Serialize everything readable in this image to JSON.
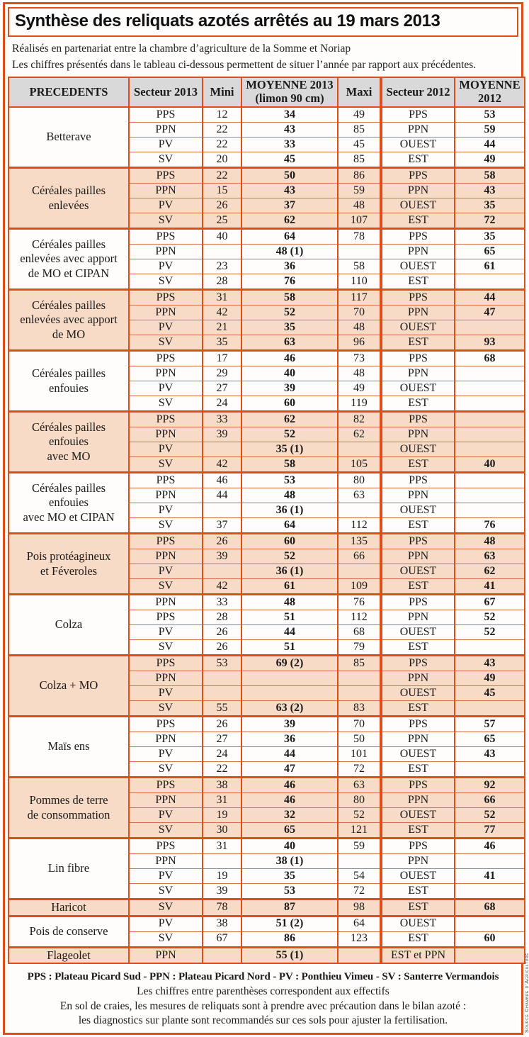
{
  "title": "Synthèse des reliquats azotés arrêtés au 19 mars 2013",
  "subtitle_lines": [
    "Réalisés en partenariat entre la chambre d’agriculture de la Somme et Noriap",
    "Les chiffres présentés dans le tableau ci-dessous permettent de situer l’année par rapport aux précédentes."
  ],
  "colors": {
    "border_orange": "#dd4f17",
    "shaded_row": "#f8dbc6",
    "header_gray": "#d9d9d9"
  },
  "table": {
    "columns": [
      "PRECEDENTS",
      "Secteur 2013",
      "Mini",
      "MOYENNE 2013\n(limon 90 cm)",
      "Maxi",
      "Secteur 2012",
      "MOYENNE\n2012"
    ],
    "groups": [
      {
        "label": "Betterave",
        "shaded": false,
        "rows": [
          [
            "PPS",
            "12",
            "34",
            "49",
            "PPS",
            "53"
          ],
          [
            "PPN",
            "22",
            "43",
            "85",
            "PPN",
            "59"
          ],
          [
            "PV",
            "22",
            "33",
            "45",
            "OUEST",
            "44"
          ],
          [
            "SV",
            "20",
            "45",
            "85",
            "EST",
            "49"
          ]
        ]
      },
      {
        "label": "Céréales pailles\nenlevées",
        "shaded": true,
        "rows": [
          [
            "PPS",
            "22",
            "50",
            "86",
            "PPS",
            "58"
          ],
          [
            "PPN",
            "15",
            "43",
            "59",
            "PPN",
            "43"
          ],
          [
            "PV",
            "26",
            "37",
            "48",
            "OUEST",
            "35"
          ],
          [
            "SV",
            "25",
            "62",
            "107",
            "EST",
            "72"
          ]
        ]
      },
      {
        "label": "Céréales pailles\nenlevées avec apport\nde MO et CIPAN",
        "shaded": false,
        "rows": [
          [
            "PPS",
            "40",
            "64",
            "78",
            "PPS",
            "35"
          ],
          [
            "PPN",
            "",
            "48 (1)",
            "",
            "PPN",
            "65"
          ],
          [
            "PV",
            "23",
            "36",
            "58",
            "OUEST",
            "61"
          ],
          [
            "SV",
            "28",
            "76",
            "110",
            "EST",
            ""
          ]
        ]
      },
      {
        "label": "Céréales pailles\nenlevées avec apport\nde MO",
        "shaded": true,
        "rows": [
          [
            "PPS",
            "31",
            "58",
            "117",
            "PPS",
            "44"
          ],
          [
            "PPN",
            "42",
            "52",
            "70",
            "PPN",
            "47"
          ],
          [
            "PV",
            "21",
            "35",
            "48",
            "OUEST",
            ""
          ],
          [
            "SV",
            "35",
            "63",
            "96",
            "EST",
            "93"
          ]
        ]
      },
      {
        "label": "Céréales pailles\nenfouies",
        "shaded": false,
        "rows": [
          [
            "PPS",
            "17",
            "46",
            "73",
            "PPS",
            "68"
          ],
          [
            "PPN",
            "29",
            "40",
            "48",
            "PPN",
            ""
          ],
          [
            "PV",
            "27",
            "39",
            "49",
            "OUEST",
            ""
          ],
          [
            "SV",
            "24",
            "60",
            "119",
            "EST",
            ""
          ]
        ]
      },
      {
        "label": "Céréales pailles enfouies\navec MO",
        "shaded": true,
        "rows": [
          [
            "PPS",
            "33",
            "62",
            "82",
            "PPS",
            ""
          ],
          [
            "PPN",
            "39",
            "52",
            "62",
            "PPN",
            ""
          ],
          [
            "PV",
            "",
            "35 (1)",
            "",
            "OUEST",
            ""
          ],
          [
            "SV",
            "42",
            "58",
            "105",
            "EST",
            "40"
          ]
        ]
      },
      {
        "label": "Céréales pailles enfouies\navec MO et CIPAN",
        "shaded": false,
        "rows": [
          [
            "PPS",
            "46",
            "53",
            "80",
            "PPS",
            ""
          ],
          [
            "PPN",
            "44",
            "48",
            "63",
            "PPN",
            ""
          ],
          [
            "PV",
            "",
            "36 (1)",
            "",
            "OUEST",
            ""
          ],
          [
            "SV",
            "37",
            "64",
            "112",
            "EST",
            "76"
          ]
        ]
      },
      {
        "label": "Pois protéagineux\net Féveroles",
        "shaded": true,
        "rows": [
          [
            "PPS",
            "26",
            "60",
            "135",
            "PPS",
            "48"
          ],
          [
            "PPN",
            "39",
            "52",
            "66",
            "PPN",
            "63"
          ],
          [
            "PV",
            "",
            "36 (1)",
            "",
            "OUEST",
            "62"
          ],
          [
            "SV",
            "42",
            "61",
            "109",
            "EST",
            "41"
          ]
        ]
      },
      {
        "label": "Colza",
        "shaded": false,
        "rows": [
          [
            "PPN",
            "33",
            "48",
            "76",
            "PPS",
            "67"
          ],
          [
            "PPS",
            "28",
            "51",
            "112",
            "PPN",
            "52"
          ],
          [
            "PV",
            "26",
            "44",
            "68",
            "OUEST",
            "52"
          ],
          [
            "SV",
            "26",
            "51",
            "79",
            "EST",
            ""
          ]
        ]
      },
      {
        "label": "Colza + MO",
        "shaded": true,
        "rows": [
          [
            "PPS",
            "53",
            "69 (2)",
            "85",
            "PPS",
            "43"
          ],
          [
            "PPN",
            "",
            "",
            "",
            "PPN",
            "49"
          ],
          [
            "PV",
            "",
            "",
            "",
            "OUEST",
            "45"
          ],
          [
            "SV",
            "55",
            "63 (2)",
            "83",
            "EST",
            ""
          ]
        ]
      },
      {
        "label": "Maïs ens",
        "shaded": false,
        "rows": [
          [
            "PPS",
            "26",
            "39",
            "70",
            "PPS",
            "57"
          ],
          [
            "PPN",
            "27",
            "36",
            "50",
            "PPN",
            "65"
          ],
          [
            "PV",
            "24",
            "44",
            "101",
            "OUEST",
            "43"
          ],
          [
            "SV",
            "22",
            "47",
            "72",
            "EST",
            ""
          ]
        ]
      },
      {
        "label": "Pommes de terre\nde consommation",
        "shaded": true,
        "rows": [
          [
            "PPS",
            "38",
            "46",
            "63",
            "PPS",
            "92"
          ],
          [
            "PPN",
            "31",
            "46",
            "80",
            "PPN",
            "66"
          ],
          [
            "PV",
            "19",
            "32",
            "52",
            "OUEST",
            "52"
          ],
          [
            "SV",
            "30",
            "65",
            "121",
            "EST",
            "77"
          ]
        ]
      },
      {
        "label": "Lin fibre",
        "shaded": false,
        "rows": [
          [
            "PPS",
            "31",
            "40",
            "59",
            "PPS",
            "46"
          ],
          [
            "PPN",
            "",
            "38 (1)",
            "",
            "PPN",
            ""
          ],
          [
            "PV",
            "19",
            "35",
            "54",
            "OUEST",
            "41"
          ],
          [
            "SV",
            "39",
            "53",
            "72",
            "EST",
            ""
          ]
        ]
      },
      {
        "label": "Haricot",
        "shaded": true,
        "rows": [
          [
            "SV",
            "78",
            "87",
            "98",
            "EST",
            "68"
          ]
        ]
      },
      {
        "label": "Pois de conserve",
        "shaded": false,
        "rows": [
          [
            "PV",
            "38",
            "51 (2)",
            "64",
            "OUEST",
            ""
          ],
          [
            "SV",
            "67",
            "86",
            "123",
            "EST",
            "60"
          ]
        ]
      },
      {
        "label": "Flageolet",
        "shaded": true,
        "rows": [
          [
            "PPN",
            "",
            "55 (1)",
            "",
            "EST et PPN",
            ""
          ]
        ]
      }
    ]
  },
  "footer": {
    "lines": [
      "PPS : Plateau Picard Sud - PPN : Plateau Picard Nord - PV : Ponthieu Vimeu - SV : Santerre Vermandois",
      "Les chiffres entre parenthèses correspondent aux effectifs",
      "En sol de craies, les mesures de reliquats sont à prendre avec précaution dans le bilan azoté :",
      "les diagnostics sur plante sont recommandés sur ces sols pour ajuster la fertilisation."
    ]
  },
  "source_credit": "Source Chambre d’Agriculture"
}
